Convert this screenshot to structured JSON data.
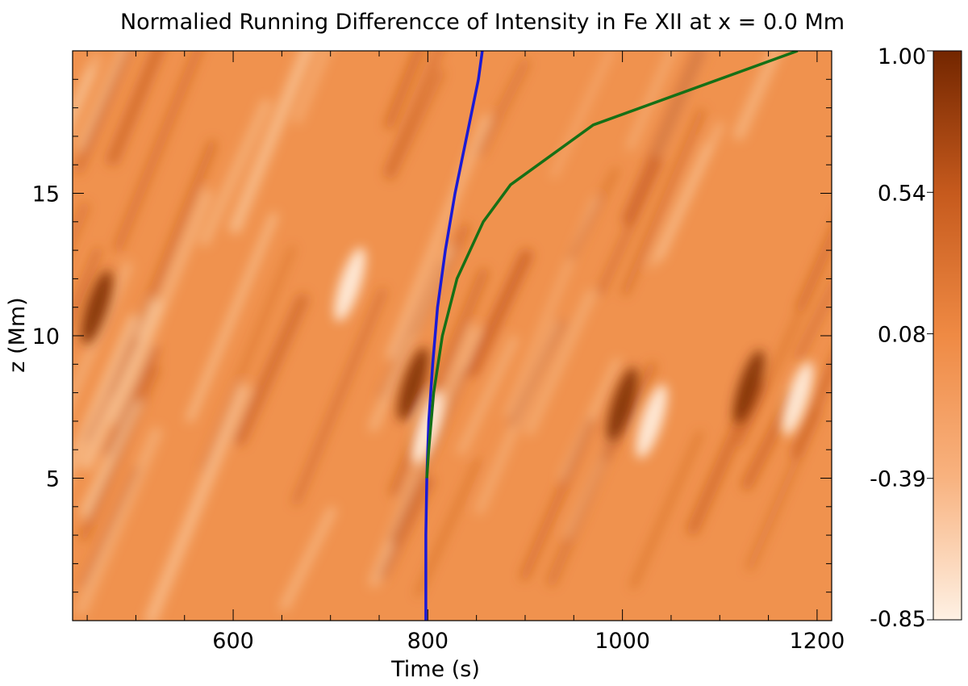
{
  "chart_data": {
    "type": "heatmap",
    "title": "Normalied Running Differencce of Intensity in Fe XII at x = 0.0 Mm",
    "xlabel": "Time (s)",
    "ylabel": "z (Mm)",
    "xlim": [
      435,
      1215
    ],
    "ylim": [
      0,
      20
    ],
    "x_ticks": [
      600,
      800,
      1000,
      1200
    ],
    "y_ticks": [
      5,
      10,
      15
    ],
    "x_minor_step": 50,
    "y_minor_step": 1,
    "colorbar": {
      "range": [
        -0.85,
        1.0
      ],
      "tick_values": [
        1.0,
        0.54,
        0.08,
        -0.39,
        -0.85
      ],
      "tick_labels": [
        "1.00",
        "0.54",
        "0.08",
        "-0.39",
        "-0.85"
      ],
      "colors": [
        "#fef1e4",
        "#f8b27f",
        "#ef8a44",
        "#c65a1d",
        "#732600"
      ]
    },
    "series": [
      {
        "name": "blue-track",
        "color": "#1a1ad6",
        "x": [
          798,
          798,
          799,
          801,
          805,
          810,
          818,
          828,
          840,
          852,
          856
        ],
        "z": [
          0,
          3,
          5,
          7,
          9,
          11,
          13,
          15,
          17,
          19,
          20
        ]
      },
      {
        "name": "green-track",
        "color": "#167016",
        "x": [
          799,
          801,
          806,
          815,
          830,
          857,
          885,
          970,
          1180
        ],
        "z": [
          5,
          6,
          8,
          10,
          12,
          14,
          15.3,
          17.4,
          20
        ]
      }
    ],
    "features": [
      {
        "kind": "dark",
        "t": 785,
        "z": 8.3
      },
      {
        "kind": "bright",
        "t": 800,
        "z": 6.8
      },
      {
        "kind": "dark",
        "t": 1000,
        "z": 7.6
      },
      {
        "kind": "bright",
        "t": 1030,
        "z": 7.0
      },
      {
        "kind": "dark",
        "t": 1130,
        "z": 8.2
      },
      {
        "kind": "dark",
        "t": 460,
        "z": 11.0
      },
      {
        "kind": "bright",
        "t": 720,
        "z": 11.8
      },
      {
        "kind": "bright",
        "t": 1180,
        "z": 7.8
      }
    ]
  }
}
